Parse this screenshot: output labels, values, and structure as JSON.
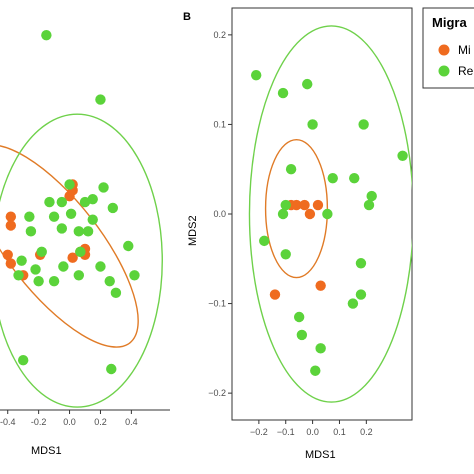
{
  "colors": {
    "migrant": "#ef6b1f",
    "resident": "#5bd33a",
    "ellipse_migrant": "#e07b27",
    "ellipse_resident": "#6fd14b",
    "panel_border": "#333333",
    "tick_text": "#4d4d4d"
  },
  "legend": {
    "title": "Migra",
    "items": [
      {
        "label": "Mi",
        "color": "#ef6b1f"
      },
      {
        "label": "Re",
        "color": "#5bd33a"
      }
    ]
  },
  "chart_data": [
    {
      "type": "scatter",
      "panel_label": "",
      "xlabel": "MDS1",
      "ylabel": "",
      "xlim": [
        -0.45,
        0.65
      ],
      "ylim": [
        -0.66,
        0.74
      ],
      "x_ticks": [
        -0.4,
        -0.2,
        0.0,
        0.2,
        0.4
      ],
      "x_tick_labels": [
        "-0.4",
        "-0.2",
        "0.0",
        "0.2",
        "0.4"
      ],
      "grid": false,
      "series": [
        {
          "name": "Mi",
          "points": [
            [
              -0.38,
              0.0
            ],
            [
              -0.38,
              -0.03
            ],
            [
              0.0,
              0.07
            ],
            [
              0.02,
              0.09
            ],
            [
              0.02,
              0.11
            ],
            [
              -0.4,
              -0.13
            ],
            [
              -0.38,
              -0.16
            ],
            [
              -0.19,
              -0.13
            ],
            [
              0.02,
              -0.14
            ],
            [
              0.1,
              -0.11
            ],
            [
              0.07,
              -0.12
            ],
            [
              0.1,
              -0.13
            ],
            [
              -0.3,
              -0.2
            ]
          ]
        },
        {
          "name": "Re",
          "points": [
            [
              -0.15,
              0.62
            ],
            [
              0.2,
              0.4
            ],
            [
              0.0,
              0.11
            ],
            [
              0.1,
              0.05
            ],
            [
              0.22,
              0.1
            ],
            [
              0.15,
              0.06
            ],
            [
              -0.13,
              0.05
            ],
            [
              -0.26,
              0.0
            ],
            [
              -0.1,
              0.0
            ],
            [
              0.28,
              0.03
            ],
            [
              -0.05,
              0.05
            ],
            [
              0.01,
              0.01
            ],
            [
              0.15,
              -0.01
            ],
            [
              -0.25,
              -0.05
            ],
            [
              -0.05,
              -0.04
            ],
            [
              0.06,
              -0.05
            ],
            [
              0.12,
              -0.05
            ],
            [
              0.38,
              -0.1
            ],
            [
              0.07,
              -0.12
            ],
            [
              -0.18,
              -0.12
            ],
            [
              -0.31,
              -0.15
            ],
            [
              -0.04,
              -0.17
            ],
            [
              0.2,
              -0.17
            ],
            [
              -0.22,
              -0.18
            ],
            [
              0.26,
              -0.22
            ],
            [
              -0.2,
              -0.22
            ],
            [
              -0.33,
              -0.2
            ],
            [
              0.42,
              -0.2
            ],
            [
              0.06,
              -0.2
            ],
            [
              -0.1,
              -0.22
            ],
            [
              0.3,
              -0.26
            ],
            [
              -0.3,
              -0.49
            ],
            [
              0.27,
              -0.52
            ]
          ]
        }
      ],
      "ellipses": [
        {
          "group": "Mi",
          "cx": -0.1,
          "cy": -0.1,
          "rx": 0.3,
          "ry": 0.42,
          "angle_deg": 38
        },
        {
          "group": "Re",
          "cx": 0.05,
          "cy": -0.15,
          "rx": 0.55,
          "ry": 0.5,
          "angle_deg": 0
        }
      ]
    },
    {
      "type": "scatter",
      "panel_label": "B",
      "xlabel": "MDS1",
      "ylabel": "MDS2",
      "xlim": [
        -0.3,
        0.37
      ],
      "ylim": [
        -0.23,
        0.23
      ],
      "x_ticks": [
        -0.2,
        -0.1,
        0.0,
        0.1,
        0.2
      ],
      "x_tick_labels": [
        "−0.2",
        "−0.1",
        "0.0",
        "0.1",
        "0.2"
      ],
      "y_ticks": [
        -0.2,
        -0.1,
        0.0,
        0.1,
        0.2
      ],
      "y_tick_labels": [
        "−0.2",
        "−0.1",
        "0.0",
        "0.1",
        "0.2"
      ],
      "grid": false,
      "series": [
        {
          "name": "Mi",
          "points": [
            [
              -0.08,
              0.01
            ],
            [
              -0.06,
              0.01
            ],
            [
              -0.03,
              0.01
            ],
            [
              -0.01,
              0.0
            ],
            [
              0.02,
              0.01
            ],
            [
              -0.14,
              -0.09
            ],
            [
              0.03,
              -0.08
            ]
          ]
        },
        {
          "name": "Re",
          "points": [
            [
              -0.21,
              0.155
            ],
            [
              -0.11,
              0.135
            ],
            [
              -0.02,
              0.145
            ],
            [
              0.0,
              0.1
            ],
            [
              0.19,
              0.1
            ],
            [
              -0.08,
              0.05
            ],
            [
              0.075,
              0.04
            ],
            [
              0.155,
              0.04
            ],
            [
              0.22,
              0.02
            ],
            [
              0.21,
              0.01
            ],
            [
              -0.1,
              0.01
            ],
            [
              -0.11,
              0.0
            ],
            [
              0.055,
              0.0
            ],
            [
              -0.18,
              -0.03
            ],
            [
              -0.1,
              -0.045
            ],
            [
              0.18,
              -0.055
            ],
            [
              0.15,
              -0.1
            ],
            [
              0.18,
              -0.09
            ],
            [
              -0.05,
              -0.115
            ],
            [
              -0.04,
              -0.135
            ],
            [
              0.03,
              -0.15
            ],
            [
              0.01,
              -0.175
            ],
            [
              0.335,
              0.065
            ]
          ]
        }
      ],
      "ellipses": [
        {
          "group": "Mi",
          "cx": -0.06,
          "cy": 0.006,
          "rx": 0.115,
          "ry": 0.077,
          "angle_deg": 0
        },
        {
          "group": "Re",
          "cx": 0.07,
          "cy": 0.0,
          "rx": 0.305,
          "ry": 0.21,
          "angle_deg": 0
        }
      ]
    }
  ]
}
